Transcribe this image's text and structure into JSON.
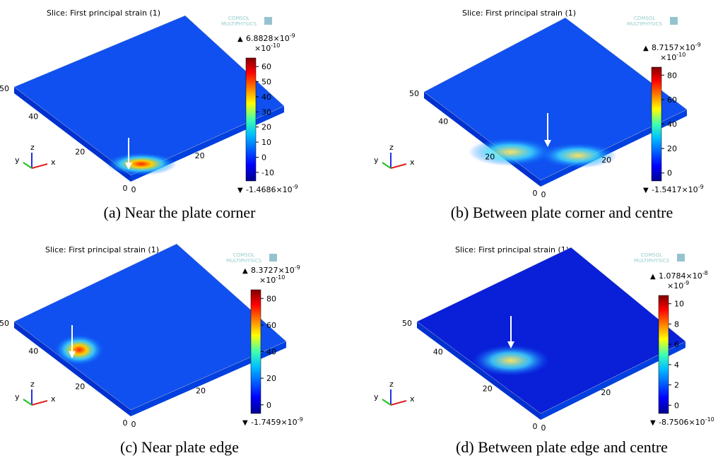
{
  "panels": [
    {
      "title": "Slice: First principal strain (1)",
      "logo": [
        "COMSOL",
        "MULTIPHYSICS"
      ],
      "max": {
        "base": "6.8828×10",
        "exp": "-9"
      },
      "scale": {
        "base": "×10",
        "exp": "-10"
      },
      "min": {
        "base": "-1.4686×10",
        "exp": "-9"
      },
      "colorbar_ticks": [
        60,
        50,
        40,
        30,
        20,
        10,
        0,
        -10
      ],
      "side_labels": [
        50,
        40,
        20
      ],
      "bottom_labels": [
        0,
        0,
        20
      ],
      "triad": [
        "x",
        "y",
        "z"
      ],
      "caption": "(a) Near the plate corner"
    },
    {
      "title": "Slice: First principal strain (1)",
      "logo": [
        "COMSOL",
        "MULTIPHYSICS"
      ],
      "max": {
        "base": "8.7157×10",
        "exp": "-9"
      },
      "scale": {
        "base": "×10",
        "exp": "-10"
      },
      "min": {
        "base": "-1.5417×10",
        "exp": "-9"
      },
      "colorbar_ticks": [
        80,
        60,
        40,
        20,
        0
      ],
      "side_labels": [
        50,
        40,
        20
      ],
      "bottom_labels": [
        0,
        0,
        20
      ],
      "triad": [
        "x",
        "y",
        "z"
      ],
      "caption": "(b) Between plate corner and centre"
    },
    {
      "title": "Slice: First principal strain (1)",
      "logo": [
        "COMSOL",
        "MULTIPHYSICS"
      ],
      "max": {
        "base": "8.3727×10",
        "exp": "-9"
      },
      "scale": {
        "base": "×10",
        "exp": "-10"
      },
      "min": {
        "base": "-1.7459×10",
        "exp": "-9"
      },
      "colorbar_ticks": [
        80,
        60,
        40,
        20,
        0
      ],
      "side_labels": [
        50,
        40,
        20
      ],
      "bottom_labels": [
        0,
        0,
        20
      ],
      "triad": [
        "x",
        "y",
        "z"
      ],
      "caption": "(c) Near plate edge"
    },
    {
      "title": "Slice: First principal strain (1)",
      "logo": [
        "COMSOL",
        "MULTIPHYSICS"
      ],
      "max": {
        "base": "1.0784×10",
        "exp": "-8"
      },
      "scale": {
        "base": "×10",
        "exp": "-9"
      },
      "min": {
        "base": "-8.7506×10",
        "exp": "-10"
      },
      "colorbar_ticks": [
        10,
        8,
        6,
        4,
        2,
        0
      ],
      "side_labels": [
        50,
        40,
        20
      ],
      "bottom_labels": [
        0,
        0,
        20
      ],
      "triad": [
        "x",
        "y",
        "z"
      ],
      "caption": "(d) Between plate edge and centre"
    }
  ]
}
